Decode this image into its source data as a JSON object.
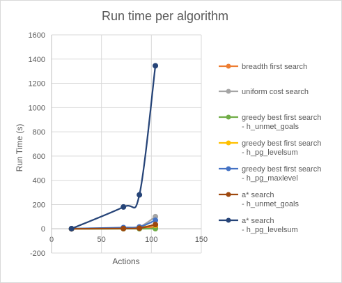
{
  "chart_data": {
    "type": "scatter",
    "title": "Run time per algorithm",
    "xlabel": "Actions",
    "ylabel": "Run Time (s)",
    "xlim": [
      0,
      150
    ],
    "ylim": [
      -200,
      1600
    ],
    "x_ticks": [
      0,
      50,
      100,
      150
    ],
    "y_ticks": [
      -200,
      0,
      200,
      400,
      600,
      800,
      1000,
      1200,
      1400,
      1600
    ],
    "grid": true,
    "legend_position": "right",
    "lines_smoothed": true,
    "series": [
      {
        "name_lines": [
          "breadth first search"
        ],
        "color": "#ed7d31",
        "x": [
          20,
          72,
          88,
          104
        ],
        "y": [
          0.1,
          1.5,
          3,
          14
        ]
      },
      {
        "name_lines": [
          "uniform cost search"
        ],
        "color": "#a5a5a5",
        "x": [
          20,
          72,
          88,
          104
        ],
        "y": [
          0.1,
          6,
          15,
          100
        ]
      },
      {
        "name_lines": [
          "greedy best first search",
          "- h_unmet_goals"
        ],
        "color": "#70ad47",
        "x": [
          20,
          72,
          88,
          104
        ],
        "y": [
          0.01,
          0.2,
          0.3,
          1
        ]
      },
      {
        "name_lines": [
          "greedy best first search",
          "- h_pg_levelsum"
        ],
        "color": "#ffc000",
        "x": [
          20,
          72,
          88,
          104
        ],
        "y": [
          1,
          8,
          12,
          30
        ]
      },
      {
        "name_lines": [
          "greedy best first search",
          "- h_pg_maxlevel"
        ],
        "color": "#4472c4",
        "x": [
          20,
          72,
          88,
          104
        ],
        "y": [
          1,
          10,
          15,
          70
        ]
      },
      {
        "name_lines": [
          "a* search",
          "- h_unmet_goals"
        ],
        "color": "#9e480e",
        "x": [
          20,
          72,
          88,
          104
        ],
        "y": [
          0.1,
          2,
          5,
          35
        ]
      },
      {
        "name_lines": [
          "a* search",
          "- h_pg_levelsum"
        ],
        "color": "#264478",
        "x": [
          20,
          72,
          88,
          104
        ],
        "y": [
          1,
          180,
          280,
          1345
        ]
      }
    ]
  }
}
